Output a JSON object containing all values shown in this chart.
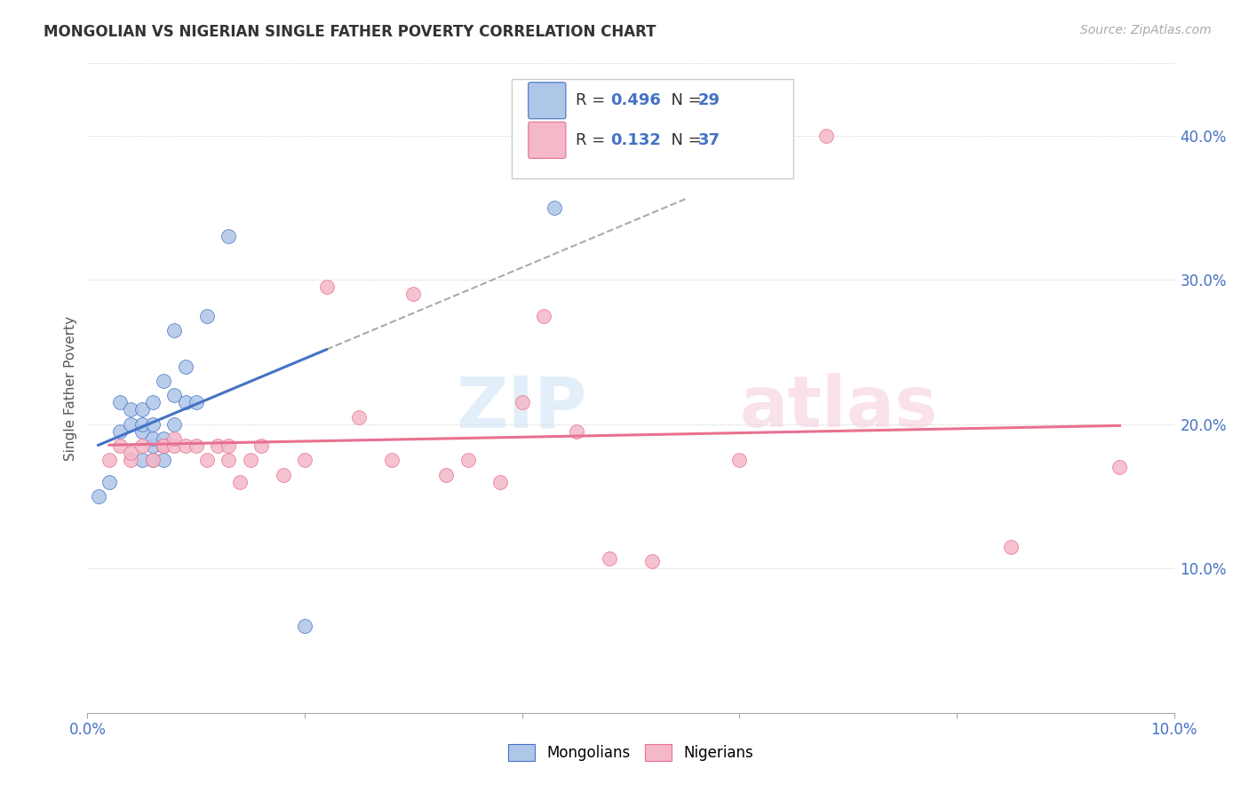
{
  "title": "MONGOLIAN VS NIGERIAN SINGLE FATHER POVERTY CORRELATION CHART",
  "source": "Source: ZipAtlas.com",
  "ylabel": "Single Father Poverty",
  "xlim": [
    0.0,
    0.1
  ],
  "ylim": [
    0.0,
    0.45
  ],
  "mongolian_color": "#aec6e8",
  "nigerian_color": "#f4b8c8",
  "mongolian_line_color": "#4472c4",
  "nigerian_line_color": "#e87090",
  "mongolian_x": [
    0.001,
    0.002,
    0.003,
    0.003,
    0.004,
    0.004,
    0.005,
    0.005,
    0.005,
    0.005,
    0.006,
    0.006,
    0.006,
    0.006,
    0.006,
    0.007,
    0.007,
    0.007,
    0.007,
    0.008,
    0.008,
    0.008,
    0.009,
    0.009,
    0.01,
    0.011,
    0.013,
    0.02,
    0.043
  ],
  "mongolian_y": [
    0.15,
    0.16,
    0.215,
    0.195,
    0.2,
    0.21,
    0.195,
    0.2,
    0.21,
    0.175,
    0.175,
    0.185,
    0.19,
    0.2,
    0.215,
    0.175,
    0.185,
    0.19,
    0.23,
    0.2,
    0.22,
    0.265,
    0.215,
    0.24,
    0.215,
    0.275,
    0.33,
    0.06,
    0.35
  ],
  "nigerian_x": [
    0.002,
    0.003,
    0.004,
    0.004,
    0.005,
    0.006,
    0.007,
    0.007,
    0.008,
    0.008,
    0.009,
    0.01,
    0.011,
    0.012,
    0.013,
    0.013,
    0.014,
    0.015,
    0.016,
    0.018,
    0.02,
    0.022,
    0.025,
    0.028,
    0.03,
    0.033,
    0.035,
    0.038,
    0.04,
    0.042,
    0.045,
    0.048,
    0.052,
    0.06,
    0.068,
    0.085,
    0.095
  ],
  "nigerian_y": [
    0.175,
    0.185,
    0.175,
    0.18,
    0.185,
    0.175,
    0.185,
    0.185,
    0.185,
    0.19,
    0.185,
    0.185,
    0.175,
    0.185,
    0.175,
    0.185,
    0.16,
    0.175,
    0.185,
    0.165,
    0.175,
    0.295,
    0.205,
    0.175,
    0.29,
    0.165,
    0.175,
    0.16,
    0.215,
    0.275,
    0.195,
    0.107,
    0.105,
    0.175,
    0.4,
    0.115,
    0.17
  ],
  "legend_R_mongolian": "0.496",
  "legend_N_mongolian": "29",
  "legend_R_nigerian": "0.132",
  "legend_N_nigerian": "37"
}
